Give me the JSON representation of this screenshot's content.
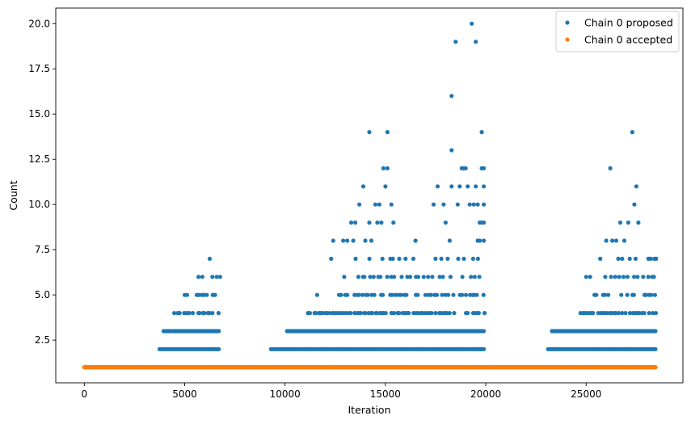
{
  "chart_data": {
    "type": "scatter",
    "title": "",
    "xlabel": "Iteration",
    "ylabel": "Count",
    "xlim": [
      -1420,
      29820
    ],
    "ylim": [
      0.14,
      20.86
    ],
    "xticks": [
      0,
      5000,
      10000,
      15000,
      20000,
      25000
    ],
    "yticks": [
      2.5,
      5.0,
      7.5,
      10.0,
      12.5,
      15.0,
      17.5,
      20.0
    ],
    "ytick_labels": [
      "2.5",
      "5.0",
      "7.5",
      "10.0",
      "12.5",
      "15.0",
      "17.5",
      "20.0"
    ],
    "grid": false,
    "legend": "top-right",
    "iterations": 28450,
    "series": [
      {
        "name": "Chain 0 proposed",
        "color": "#1f77b4",
        "bands": [
          {
            "y": 1,
            "x_ranges": [
              [
                0,
                28450
              ]
            ]
          },
          {
            "y": 2,
            "x_ranges": [
              [
                3750,
                6700
              ],
              [
                9300,
                19900
              ],
              [
                23100,
                28450
              ]
            ]
          },
          {
            "y": 3,
            "x_ranges": [
              [
                3950,
                6700
              ],
              [
                10100,
                19900
              ],
              [
                23300,
                28450
              ]
            ]
          },
          {
            "y": 4,
            "x_ranges": [
              [
                4500,
                6700
              ],
              [
                11100,
                19900
              ],
              [
                24700,
                28450
              ]
            ]
          },
          {
            "y": 5,
            "x_ranges": [
              [
                5000,
                6700
              ],
              [
                12400,
                19900
              ],
              [
                25400,
                28450
              ]
            ]
          },
          {
            "y": 6,
            "x_ranges": [
              [
                5700,
                6700
              ],
              [
                13000,
                19900
              ],
              [
                26000,
                28450
              ]
            ]
          },
          {
            "y": 7,
            "x_ranges": [
              [
                13600,
                19900
              ],
              [
                26600,
                28450
              ]
            ]
          }
        ],
        "points": [
          [
            4200,
            3
          ],
          [
            5600,
            5
          ],
          [
            5900,
            5
          ],
          [
            6400,
            5
          ],
          [
            6250,
            7
          ],
          [
            6600,
            6
          ],
          [
            11600,
            5
          ],
          [
            11800,
            4
          ],
          [
            12300,
            7
          ],
          [
            12400,
            8
          ],
          [
            12900,
            8
          ],
          [
            13100,
            8
          ],
          [
            13300,
            9
          ],
          [
            13400,
            8
          ],
          [
            13500,
            9
          ],
          [
            13700,
            10
          ],
          [
            13900,
            11
          ],
          [
            14000,
            8
          ],
          [
            14200,
            9
          ],
          [
            14300,
            8
          ],
          [
            14500,
            10
          ],
          [
            14600,
            9
          ],
          [
            14700,
            10
          ],
          [
            14800,
            9
          ],
          [
            14900,
            12
          ],
          [
            15100,
            12
          ],
          [
            14200,
            14
          ],
          [
            15100,
            14
          ],
          [
            15000,
            11
          ],
          [
            15300,
            10
          ],
          [
            15400,
            9
          ],
          [
            16500,
            8
          ],
          [
            17400,
            10
          ],
          [
            17600,
            11
          ],
          [
            17900,
            10
          ],
          [
            18000,
            9
          ],
          [
            18200,
            8
          ],
          [
            18300,
            11
          ],
          [
            18300,
            13
          ],
          [
            18300,
            16
          ],
          [
            18500,
            19
          ],
          [
            18600,
            10
          ],
          [
            18700,
            11
          ],
          [
            18800,
            12
          ],
          [
            18900,
            12
          ],
          [
            19000,
            12
          ],
          [
            19100,
            11
          ],
          [
            19200,
            10
          ],
          [
            19300,
            20
          ],
          [
            19400,
            10
          ],
          [
            19500,
            19
          ],
          [
            19500,
            11
          ],
          [
            19600,
            10
          ],
          [
            19700,
            9
          ],
          [
            19800,
            14
          ],
          [
            19800,
            12
          ],
          [
            19900,
            12
          ],
          [
            19900,
            11
          ],
          [
            19900,
            10
          ],
          [
            19900,
            9
          ],
          [
            19900,
            8
          ],
          [
            19600,
            8
          ],
          [
            19700,
            8
          ],
          [
            19800,
            9
          ],
          [
            26200,
            12
          ],
          [
            26000,
            8
          ],
          [
            26300,
            8
          ],
          [
            26500,
            8
          ],
          [
            26700,
            9
          ],
          [
            26900,
            8
          ],
          [
            27100,
            9
          ],
          [
            27300,
            14
          ],
          [
            27400,
            10
          ],
          [
            27500,
            11
          ],
          [
            27600,
            9
          ],
          [
            28100,
            7
          ],
          [
            28400,
            7
          ],
          [
            25000,
            6
          ],
          [
            25200,
            6
          ],
          [
            25700,
            7
          ]
        ]
      },
      {
        "name": "Chain 0 accepted",
        "color": "#ff7f0e",
        "bands": [
          {
            "y": 1,
            "x_ranges": [
              [
                0,
                28450
              ]
            ]
          }
        ],
        "points": []
      }
    ]
  }
}
